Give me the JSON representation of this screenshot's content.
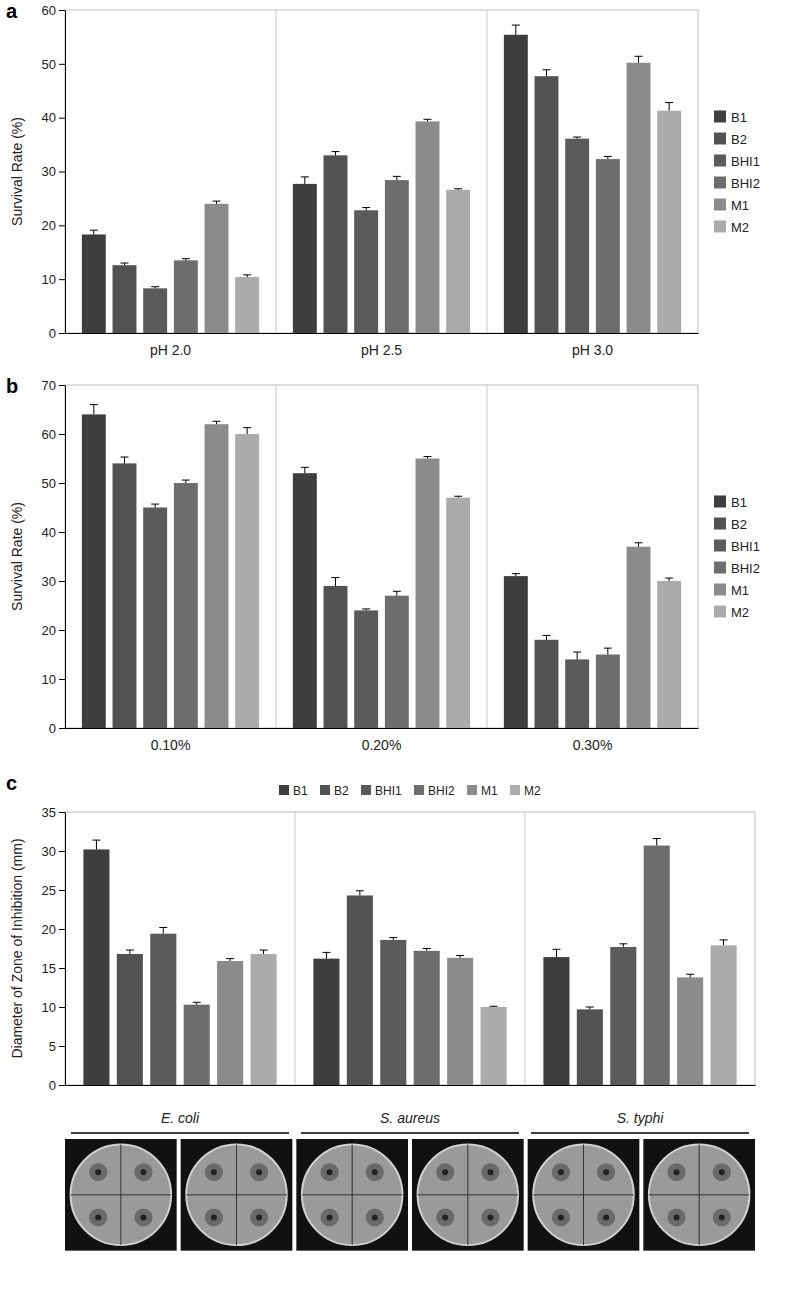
{
  "chart_data": [
    {
      "type": "bar",
      "panel_label": "a",
      "ylabel": "Survival Rate (%)",
      "categories": [
        "pH 2.0",
        "pH 2.5",
        "pH 3.0"
      ],
      "series": [
        {
          "name": "B1",
          "color": "#3e3e3e",
          "values": [
            18.3,
            27.7,
            55.4
          ],
          "errors": [
            0.8,
            1.3,
            1.8
          ]
        },
        {
          "name": "B2",
          "color": "#525252",
          "values": [
            12.6,
            33.0,
            47.7
          ],
          "errors": [
            0.4,
            0.7,
            1.2
          ]
        },
        {
          "name": "BHI1",
          "color": "#5b5b5b",
          "values": [
            8.3,
            22.8,
            36.1
          ],
          "errors": [
            0.3,
            0.5,
            0.3
          ]
        },
        {
          "name": "BHI2",
          "color": "#6d6d6d",
          "values": [
            13.5,
            28.4,
            32.3
          ],
          "errors": [
            0.3,
            0.7,
            0.5
          ]
        },
        {
          "name": "M1",
          "color": "#8b8b8b",
          "values": [
            24.0,
            39.3,
            50.2
          ],
          "errors": [
            0.5,
            0.4,
            1.2
          ]
        },
        {
          "name": "M2",
          "color": "#ababab",
          "values": [
            10.4,
            26.6,
            41.3
          ],
          "errors": [
            0.4,
            0.2,
            1.5
          ]
        }
      ],
      "ylim": [
        0,
        60
      ],
      "yticks": [
        0,
        10,
        20,
        30,
        40,
        50,
        60
      ],
      "grid": false,
      "legend": "right"
    },
    {
      "type": "bar",
      "panel_label": "b",
      "ylabel": "Survival Rate (%)",
      "categories": [
        "0.10%",
        "0.20%",
        "0.30%"
      ],
      "series": [
        {
          "name": "B1",
          "color": "#3e3e3e",
          "values": [
            64,
            52,
            31
          ],
          "errors": [
            2.0,
            1.2,
            0.5
          ]
        },
        {
          "name": "B2",
          "color": "#525252",
          "values": [
            54,
            29,
            18
          ],
          "errors": [
            1.3,
            1.7,
            0.9
          ]
        },
        {
          "name": "BHI1",
          "color": "#5b5b5b",
          "values": [
            45,
            24,
            14
          ],
          "errors": [
            0.7,
            0.3,
            1.5
          ]
        },
        {
          "name": "BHI2",
          "color": "#6d6d6d",
          "values": [
            50,
            27,
            15
          ],
          "errors": [
            0.6,
            0.9,
            1.3
          ]
        },
        {
          "name": "M1",
          "color": "#8b8b8b",
          "values": [
            62,
            55,
            37
          ],
          "errors": [
            0.6,
            0.4,
            0.8
          ]
        },
        {
          "name": "M2",
          "color": "#ababab",
          "values": [
            60,
            47,
            30
          ],
          "errors": [
            1.3,
            0.3,
            0.6
          ]
        }
      ],
      "ylim": [
        0,
        70
      ],
      "yticks": [
        0,
        10,
        20,
        30,
        40,
        50,
        60,
        70
      ],
      "grid": false,
      "legend": "right"
    },
    {
      "type": "bar",
      "panel_label": "c",
      "ylabel": "Diameter of Zone of Inhibition (mm)",
      "categories": [
        "E. coli",
        "S. aureus",
        "S. typhi"
      ],
      "series": [
        {
          "name": "B1",
          "color": "#3e3e3e",
          "values": [
            30.2,
            16.2,
            16.4
          ],
          "errors": [
            1.2,
            0.8,
            1.0
          ]
        },
        {
          "name": "B2",
          "color": "#525252",
          "values": [
            16.8,
            24.3,
            9.7
          ],
          "errors": [
            0.5,
            0.6,
            0.3
          ]
        },
        {
          "name": "BHI1",
          "color": "#5b5b5b",
          "values": [
            19.4,
            18.6,
            17.7
          ],
          "errors": [
            0.8,
            0.3,
            0.4
          ]
        },
        {
          "name": "BHI2",
          "color": "#6d6d6d",
          "values": [
            10.3,
            17.2,
            30.7
          ],
          "errors": [
            0.3,
            0.3,
            0.9
          ]
        },
        {
          "name": "M1",
          "color": "#8b8b8b",
          "values": [
            15.9,
            16.3,
            13.8
          ],
          "errors": [
            0.3,
            0.3,
            0.4
          ]
        },
        {
          "name": "M2",
          "color": "#ababab",
          "values": [
            16.8,
            10.0,
            17.9
          ],
          "errors": [
            0.5,
            0.1,
            0.7
          ]
        }
      ],
      "ylim": [
        0,
        35
      ],
      "yticks": [
        0,
        5,
        10,
        15,
        20,
        25,
        30,
        35
      ],
      "grid": false,
      "legend": "top"
    }
  ]
}
